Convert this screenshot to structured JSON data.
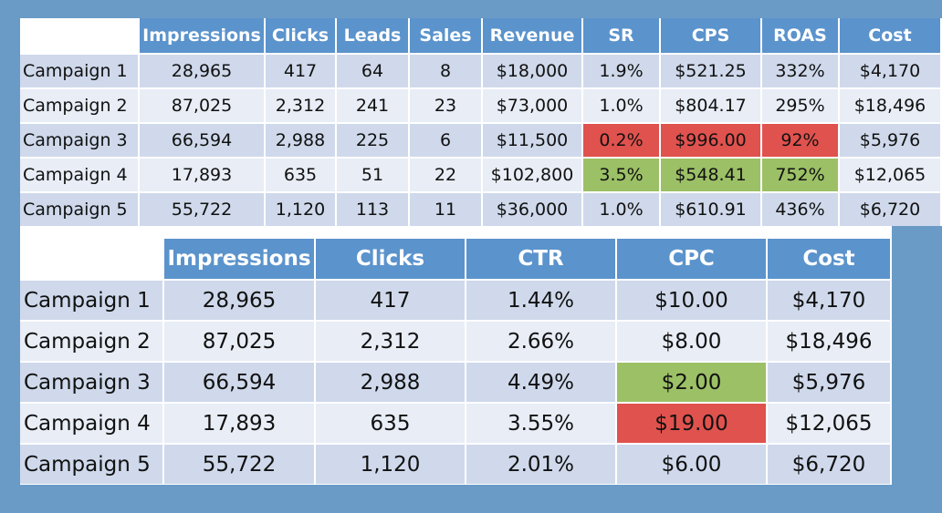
{
  "table_top": {
    "corner": "",
    "columns": [
      "Impressions",
      "Clicks",
      "Leads",
      "Sales",
      "Revenue",
      "SR",
      "CPS",
      "ROAS",
      "Cost"
    ],
    "rows": [
      {
        "label": "Campaign 1",
        "cells": [
          "28,965",
          "417",
          "64",
          "8",
          "$18,000",
          "1.9%",
          "$521.25",
          "332%",
          "$4,170"
        ],
        "highlight": [
          "",
          "",
          "",
          "",
          "",
          "",
          "",
          "",
          ""
        ]
      },
      {
        "label": "Campaign 2",
        "cells": [
          "87,025",
          "2,312",
          "241",
          "23",
          "$73,000",
          "1.0%",
          "$804.17",
          "295%",
          "$18,496"
        ],
        "highlight": [
          "",
          "",
          "",
          "",
          "",
          "",
          "",
          "",
          ""
        ]
      },
      {
        "label": "Campaign 3",
        "cells": [
          "66,594",
          "2,988",
          "225",
          "6",
          "$11,500",
          "0.2%",
          "$996.00",
          "92%",
          "$5,976"
        ],
        "highlight": [
          "",
          "",
          "",
          "",
          "",
          "bad",
          "bad",
          "bad",
          ""
        ]
      },
      {
        "label": "Campaign 4",
        "cells": [
          "17,893",
          "635",
          "51",
          "22",
          "$102,800",
          "3.5%",
          "$548.41",
          "752%",
          "$12,065"
        ],
        "highlight": [
          "",
          "",
          "",
          "",
          "",
          "good",
          "good",
          "good",
          ""
        ]
      },
      {
        "label": "Campaign 5",
        "cells": [
          "55,722",
          "1,120",
          "113",
          "11",
          "$36,000",
          "1.0%",
          "$610.91",
          "436%",
          "$6,720"
        ],
        "highlight": [
          "",
          "",
          "",
          "",
          "",
          "",
          "",
          "",
          ""
        ]
      }
    ]
  },
  "table_bottom": {
    "corner": "",
    "columns": [
      "Impressions",
      "Clicks",
      "CTR",
      "CPC",
      "Cost"
    ],
    "rows": [
      {
        "label": "Campaign 1",
        "cells": [
          "28,965",
          "417",
          "1.44%",
          "$10.00",
          "$4,170"
        ],
        "highlight": [
          "",
          "",
          "",
          "",
          ""
        ]
      },
      {
        "label": "Campaign 2",
        "cells": [
          "87,025",
          "2,312",
          "2.66%",
          "$8.00",
          "$18,496"
        ],
        "highlight": [
          "",
          "",
          "",
          "",
          ""
        ]
      },
      {
        "label": "Campaign 3",
        "cells": [
          "66,594",
          "2,988",
          "4.49%",
          "$2.00",
          "$5,976"
        ],
        "highlight": [
          "",
          "",
          "",
          "good",
          ""
        ]
      },
      {
        "label": "Campaign 4",
        "cells": [
          "17,893",
          "635",
          "3.55%",
          "$19.00",
          "$12,065"
        ],
        "highlight": [
          "",
          "",
          "",
          "bad",
          ""
        ]
      },
      {
        "label": "Campaign 5",
        "cells": [
          "55,722",
          "1,120",
          "2.01%",
          "$6.00",
          "$6,720"
        ],
        "highlight": [
          "",
          "",
          "",
          "",
          ""
        ]
      }
    ]
  },
  "colors": {
    "background": "#6a9bc6",
    "header": "#5b93cc",
    "row_odd": "#cfd9eb",
    "row_even": "#e8edf6",
    "bad": "#e0524e",
    "good": "#9cc066"
  }
}
